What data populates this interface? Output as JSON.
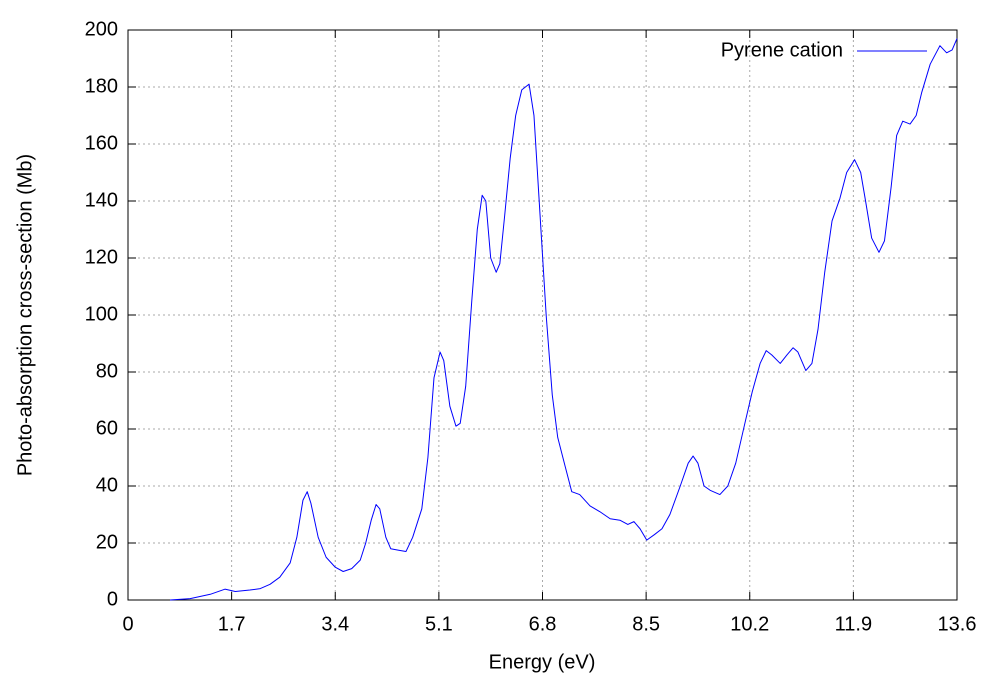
{
  "chart_data": {
    "type": "line",
    "xlabel": "Energy (eV)",
    "ylabel": "Photo-absorption cross-section (Mb)",
    "xlim": [
      0,
      13.6
    ],
    "xticks": [
      0,
      1.7,
      3.4,
      5.1,
      6.8,
      8.5,
      10.2,
      11.9,
      13.6
    ],
    "ylim": [
      0,
      200
    ],
    "yticks": [
      0,
      20,
      40,
      60,
      80,
      100,
      120,
      140,
      160,
      180,
      200
    ],
    "grid": true,
    "legend": "top-right",
    "series": [
      {
        "name": "Pyrene cation",
        "color": "#0000ff",
        "x": [
          0.69,
          1.02,
          1.35,
          1.59,
          1.76,
          2.0,
          2.17,
          2.33,
          2.49,
          2.66,
          2.77,
          2.87,
          2.94,
          3.0,
          3.12,
          3.25,
          3.4,
          3.53,
          3.67,
          3.81,
          3.9,
          3.99,
          4.07,
          4.13,
          4.23,
          4.31,
          4.43,
          4.56,
          4.67,
          4.82,
          4.92,
          5.02,
          5.12,
          5.18,
          5.28,
          5.38,
          5.45,
          5.54,
          5.64,
          5.73,
          5.81,
          5.87,
          5.95,
          6.04,
          6.1,
          6.18,
          6.27,
          6.36,
          6.46,
          6.58,
          6.66,
          6.76,
          6.86,
          6.96,
          7.05,
          7.17,
          7.28,
          7.41,
          7.58,
          7.74,
          7.91,
          8.07,
          8.2,
          8.3,
          8.4,
          8.51,
          8.64,
          8.76,
          8.89,
          9.06,
          9.19,
          9.27,
          9.35,
          9.45,
          9.55,
          9.71,
          9.84,
          9.97,
          10.12,
          10.24,
          10.37,
          10.47,
          10.56,
          10.7,
          10.81,
          10.91,
          10.99,
          11.12,
          11.22,
          11.32,
          11.43,
          11.55,
          11.68,
          11.79,
          11.92,
          12.02,
          12.1,
          12.2,
          12.32,
          12.41,
          12.52,
          12.61,
          12.71,
          12.83,
          12.93,
          13.02,
          13.16,
          13.32,
          13.43,
          13.52,
          13.6
        ],
        "values": [
          0,
          0.5,
          2,
          3.8,
          3,
          3.5,
          4,
          5.5,
          8,
          13,
          22,
          35,
          38,
          34,
          22,
          15,
          11.5,
          10,
          11,
          14,
          20,
          28,
          33.5,
          32,
          22,
          18,
          17.5,
          17,
          22,
          32,
          50,
          78,
          87,
          84,
          68,
          61,
          62,
          75,
          105,
          130,
          142,
          140,
          120,
          115,
          118,
          135,
          155,
          170,
          179,
          181,
          170,
          135,
          100,
          72,
          57,
          47,
          38,
          37,
          33,
          31,
          28.5,
          28,
          26.5,
          27.5,
          25,
          21,
          23,
          25,
          30,
          40,
          48,
          50.5,
          48,
          40,
          38.5,
          37,
          40,
          48,
          62,
          73,
          83,
          87.5,
          86,
          83,
          86,
          88.5,
          87,
          80.5,
          83,
          95,
          115,
          133,
          141,
          150,
          154.5,
          150,
          140,
          127,
          122,
          126,
          145,
          163,
          168,
          167,
          170,
          178,
          188,
          194.5,
          192,
          193,
          197
        ]
      }
    ]
  }
}
